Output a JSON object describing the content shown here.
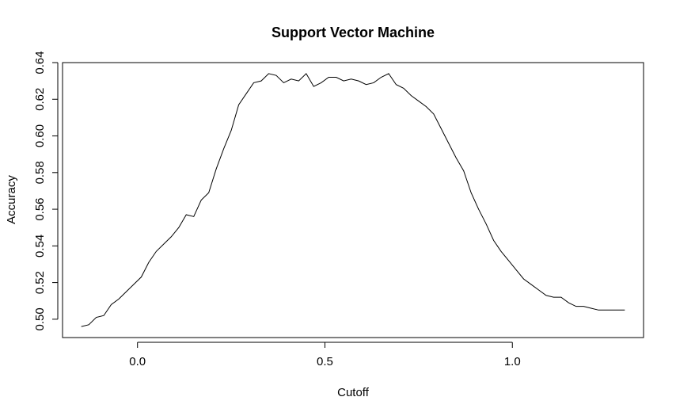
{
  "chart_data": {
    "type": "line",
    "title": "Support Vector Machine",
    "xlabel": "Cutoff",
    "ylabel": "Accuracy",
    "xlim": [
      -0.2,
      1.35
    ],
    "ylim": [
      0.49,
      0.64
    ],
    "x_ticks": [
      0.0,
      0.5,
      1.0
    ],
    "x_tick_labels": [
      "0.0",
      "0.5",
      "1.0"
    ],
    "y_ticks": [
      0.5,
      0.52,
      0.54,
      0.56,
      0.58,
      0.6,
      0.62,
      0.64
    ],
    "y_tick_labels": [
      "0.50",
      "0.52",
      "0.54",
      "0.56",
      "0.58",
      "0.60",
      "0.62",
      "0.64"
    ],
    "grid": false,
    "legend": "none",
    "series": [
      {
        "color": "#000000",
        "x": [
          -0.15,
          -0.13,
          -0.11,
          -0.09,
          -0.07,
          -0.05,
          -0.03,
          -0.01,
          0.01,
          0.03,
          0.05,
          0.07,
          0.09,
          0.11,
          0.13,
          0.15,
          0.17,
          0.19,
          0.21,
          0.23,
          0.25,
          0.27,
          0.29,
          0.31,
          0.33,
          0.35,
          0.37,
          0.39,
          0.41,
          0.43,
          0.45,
          0.47,
          0.49,
          0.51,
          0.53,
          0.55,
          0.57,
          0.59,
          0.61,
          0.63,
          0.65,
          0.67,
          0.69,
          0.71,
          0.73,
          0.75,
          0.77,
          0.79,
          0.81,
          0.83,
          0.85,
          0.87,
          0.89,
          0.91,
          0.93,
          0.95,
          0.97,
          0.99,
          1.01,
          1.03,
          1.05,
          1.07,
          1.09,
          1.11,
          1.13,
          1.15,
          1.17,
          1.19,
          1.21,
          1.23,
          1.25,
          1.27,
          1.29,
          1.3
        ],
        "y": [
          0.496,
          0.497,
          0.501,
          0.502,
          0.508,
          0.511,
          0.515,
          0.519,
          0.523,
          0.531,
          0.537,
          0.541,
          0.545,
          0.55,
          0.557,
          0.556,
          0.565,
          0.569,
          0.582,
          0.593,
          0.603,
          0.617,
          0.623,
          0.629,
          0.63,
          0.634,
          0.633,
          0.629,
          0.631,
          0.63,
          0.634,
          0.627,
          0.629,
          0.632,
          0.632,
          0.63,
          0.631,
          0.63,
          0.628,
          0.629,
          0.632,
          0.634,
          0.628,
          0.626,
          0.622,
          0.619,
          0.616,
          0.612,
          0.604,
          0.596,
          0.588,
          0.581,
          0.569,
          0.56,
          0.552,
          0.543,
          0.537,
          0.532,
          0.527,
          0.522,
          0.519,
          0.516,
          0.513,
          0.512,
          0.512,
          0.509,
          0.507,
          0.507,
          0.506,
          0.505,
          0.505,
          0.505,
          0.505,
          0.505
        ]
      }
    ]
  }
}
